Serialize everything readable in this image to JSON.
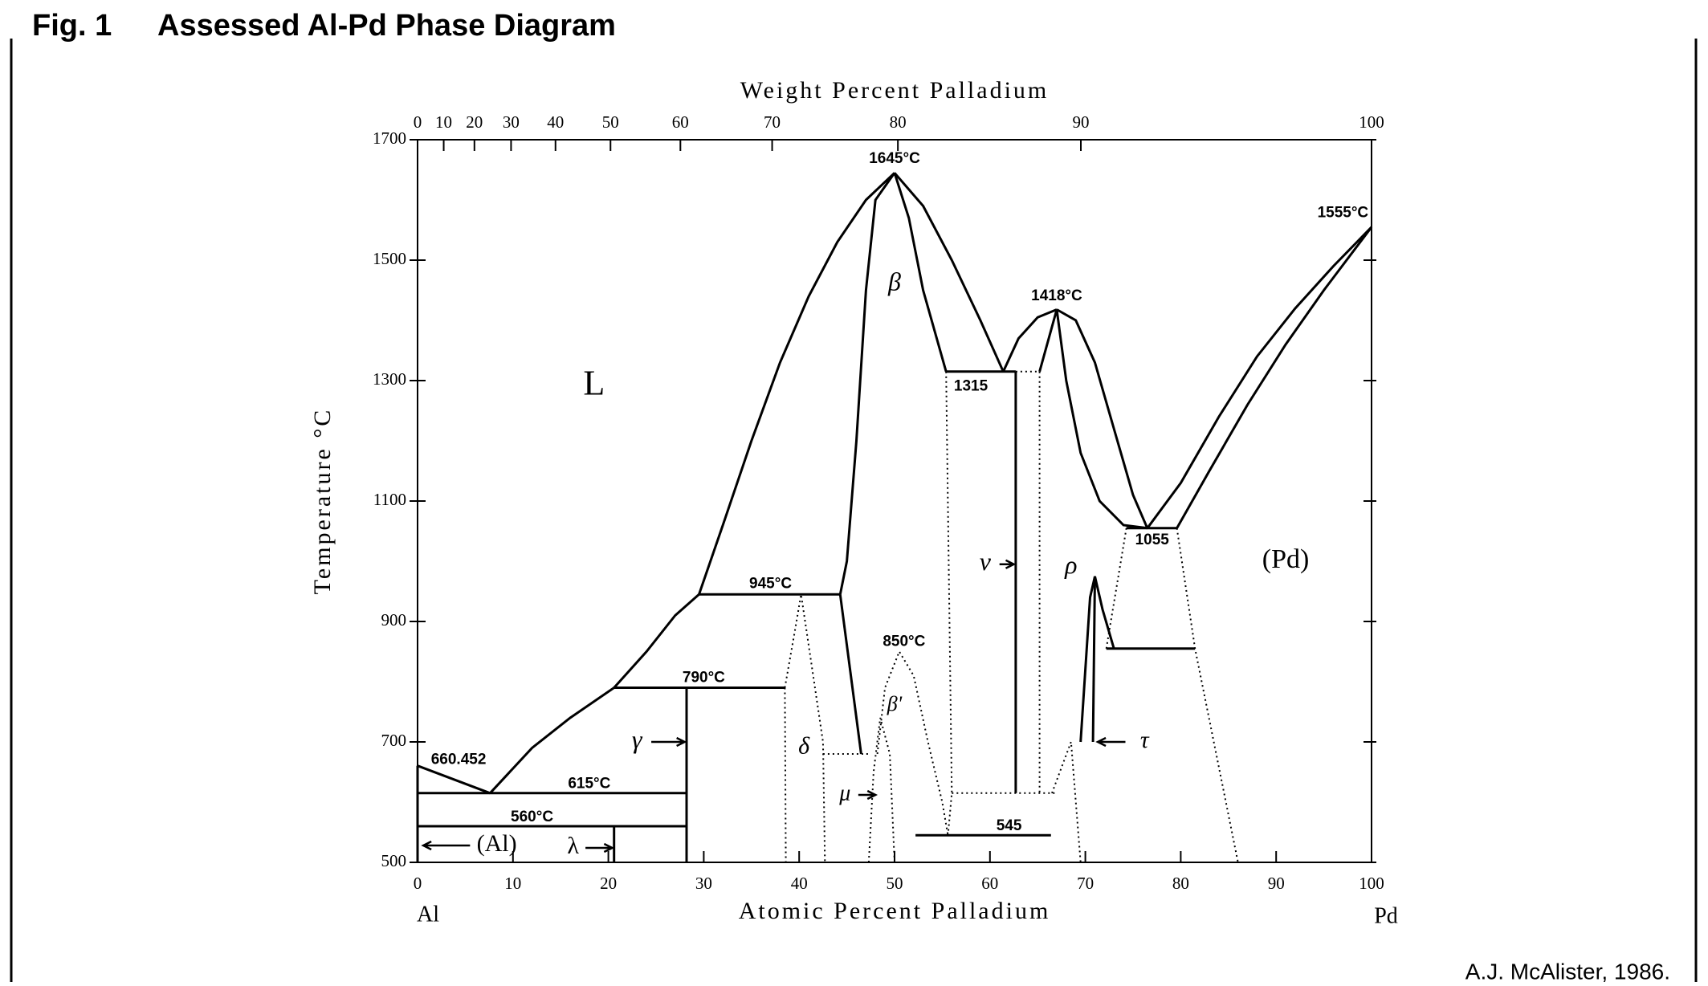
{
  "chart_data": {
    "type": "phase-diagram",
    "figure_label": "Fig. 1",
    "title": "Assessed Al-Pd Phase Diagram",
    "credit": "A.J. McAlister, 1986.",
    "xlabel": "Atomic Percent Palladium",
    "x2label": "Weight Percent Palladium",
    "ylabel": "Temperature °C",
    "left_element": "Al",
    "right_element": "Pd",
    "xlim": [
      0,
      100
    ],
    "xticks": [
      0,
      10,
      20,
      30,
      40,
      50,
      60,
      70,
      80,
      90,
      100
    ],
    "x2ticks": [
      0,
      10,
      20,
      30,
      40,
      50,
      60,
      70,
      80,
      90,
      100
    ],
    "ylim": [
      500,
      1700
    ],
    "yticks": [
      500,
      700,
      900,
      1100,
      1300,
      1500,
      1700
    ],
    "color": "#000000",
    "lines": [
      {
        "style": "solid",
        "x": [
          0,
          7.6
        ],
        "y": [
          660.452,
          615
        ]
      },
      {
        "style": "solid",
        "x": [
          7.6,
          12,
          16,
          20.6
        ],
        "y": [
          615,
          690,
          740,
          790
        ]
      },
      {
        "style": "solid",
        "x": [
          20.6,
          24,
          27,
          29.5
        ],
        "y": [
          790,
          850,
          910,
          945
        ]
      },
      {
        "style": "solid",
        "x": [
          29.5,
          32,
          35,
          38,
          41,
          44,
          47,
          50
        ],
        "y": [
          945,
          1060,
          1200,
          1330,
          1440,
          1530,
          1600,
          1645
        ]
      },
      {
        "style": "solid",
        "x": [
          50,
          53,
          56,
          59,
          61.4
        ],
        "y": [
          1645,
          1590,
          1500,
          1400,
          1315
        ]
      },
      {
        "style": "solid",
        "x": [
          50,
          48,
          47,
          46,
          45,
          44.3
        ],
        "y": [
          1645,
          1600,
          1450,
          1200,
          1000,
          945
        ]
      },
      {
        "style": "solid",
        "x": [
          50,
          51.5,
          53,
          55.4
        ],
        "y": [
          1645,
          1570,
          1450,
          1315
        ]
      },
      {
        "style": "solid",
        "x": [
          44.3,
          46.5
        ],
        "y": [
          945,
          680
        ]
      },
      {
        "style": "solid",
        "x": [
          55.4,
          62.7
        ],
        "y": [
          1315,
          1315
        ]
      },
      {
        "style": "dotted",
        "x": [
          62.7,
          65.2
        ],
        "y": [
          1315,
          1315
        ]
      },
      {
        "style": "solid",
        "x": [
          61.4,
          63,
          65,
          67
        ],
        "y": [
          1315,
          1370,
          1405,
          1418
        ]
      },
      {
        "style": "solid",
        "x": [
          67,
          69,
          71,
          73,
          75,
          76.5
        ],
        "y": [
          1418,
          1400,
          1330,
          1220,
          1110,
          1055
        ]
      },
      {
        "style": "solid",
        "x": [
          67,
          65.2
        ],
        "y": [
          1418,
          1315
        ]
      },
      {
        "style": "solid",
        "x": [
          62.7,
          62.7
        ],
        "y": [
          1315,
          615
        ]
      },
      {
        "style": "solid",
        "x": [
          67,
          68,
          69.5,
          71.5,
          74,
          76.5
        ],
        "y": [
          1418,
          1300,
          1180,
          1100,
          1060,
          1055
        ]
      },
      {
        "style": "solid",
        "x": [
          74.3,
          79.6
        ],
        "y": [
          1055,
          1055
        ]
      },
      {
        "style": "solid",
        "x": [
          76.5,
          80,
          84,
          88,
          92,
          96,
          100
        ],
        "y": [
          1055,
          1130,
          1240,
          1340,
          1420,
          1490,
          1555
        ]
      },
      {
        "style": "solid",
        "x": [
          79.6,
          83,
          87,
          91,
          95,
          100
        ],
        "y": [
          1055,
          1150,
          1260,
          1360,
          1450,
          1555
        ]
      },
      {
        "style": "dotted",
        "x": [
          74.3,
          72.2
        ],
        "y": [
          1055,
          855
        ]
      },
      {
        "style": "dotted",
        "x": [
          79.6,
          81.5,
          86
        ],
        "y": [
          1055,
          855,
          500
        ]
      },
      {
        "style": "solid",
        "x": [
          72.2,
          81.5
        ],
        "y": [
          855,
          855
        ]
      },
      {
        "style": "solid",
        "x": [
          69.5,
          70.5,
          71,
          71.8,
          73
        ],
        "y": [
          700,
          940,
          975,
          920,
          855
        ]
      },
      {
        "style": "solid",
        "x": [
          70.8,
          71
        ],
        "y": [
          700,
          975
        ]
      },
      {
        "style": "dotted",
        "x": [
          65.2,
          65.2
        ],
        "y": [
          1315,
          615
        ]
      },
      {
        "style": "dotted",
        "x": [
          66.5,
          68.5,
          69.5
        ],
        "y": [
          615,
          700,
          500
        ]
      },
      {
        "style": "dotted",
        "x": [
          56,
          66.8
        ],
        "y": [
          615,
          615
        ]
      },
      {
        "style": "dotted",
        "x": [
          55.4,
          56,
          55.6
        ],
        "y": [
          1315,
          615,
          545
        ]
      },
      {
        "style": "solid",
        "x": [
          52.2,
          66.4
        ],
        "y": [
          545,
          545
        ]
      },
      {
        "style": "solid",
        "x": [
          0,
          28.2
        ],
        "y": [
          615,
          615
        ]
      },
      {
        "style": "solid",
        "x": [
          0,
          28.2
        ],
        "y": [
          560,
          560
        ]
      },
      {
        "style": "solid",
        "x": [
          28.2,
          28.2
        ],
        "y": [
          500,
          790
        ]
      },
      {
        "style": "solid",
        "x": [
          20.6,
          38.5
        ],
        "y": [
          790,
          790
        ]
      },
      {
        "style": "solid",
        "x": [
          29.5,
          44.3
        ],
        "y": [
          945,
          945
        ]
      },
      {
        "style": "dotted",
        "x": [
          38.5,
          38.6
        ],
        "y": [
          790,
          500
        ]
      },
      {
        "style": "dotted",
        "x": [
          38.5,
          39.5,
          40.2,
          41,
          42.5,
          42.7
        ],
        "y": [
          790,
          880,
          945,
          860,
          700,
          500
        ]
      },
      {
        "style": "dotted",
        "x": [
          42.5,
          47.5
        ],
        "y": [
          680,
          680
        ]
      },
      {
        "style": "dotted",
        "x": [
          47.3,
          47.8,
          48.5,
          49.5,
          50
        ],
        "y": [
          500,
          650,
          740,
          680,
          500
        ]
      },
      {
        "style": "dotted",
        "x": [
          48.2,
          49,
          50.5,
          52,
          53.5,
          55,
          55.6
        ],
        "y": [
          680,
          790,
          850,
          810,
          700,
          600,
          545
        ]
      },
      {
        "style": "solid",
        "x": [
          20.6,
          20.6
        ],
        "y": [
          500,
          560
        ]
      },
      {
        "style": "solid",
        "x": [
          0,
          0
        ],
        "y": [
          500,
          660.452
        ]
      }
    ],
    "annotations": [
      "1645°C",
      "1555°C",
      "1418°C",
      "1315",
      "L",
      "β",
      "945°C",
      "ν",
      "ρ",
      "1055",
      "(Pd)",
      "850°C",
      "790°C",
      "β'",
      "γ",
      "δ",
      "μ",
      "τ",
      "660.452",
      "615°C",
      "560°C",
      "545",
      "(Al)",
      "λ"
    ]
  }
}
